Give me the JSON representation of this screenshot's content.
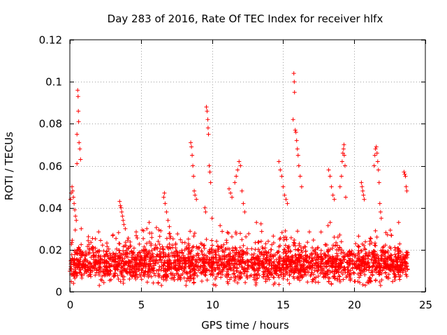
{
  "chart_data": {
    "type": "scatter",
    "title": "Day 283 of 2016, Rate Of TEC Index for receiver hlfx",
    "xlabel": "GPS time / hours",
    "ylabel": "ROTI / TECUs",
    "xlim": [
      0,
      25
    ],
    "ylim": [
      0,
      0.12
    ],
    "xticks": [
      0,
      5,
      10,
      15,
      20,
      25
    ],
    "xtick_labels": [
      "0",
      "5",
      "10",
      "15",
      "20",
      "25"
    ],
    "yticks": [
      0,
      0.02,
      0.04,
      0.06,
      0.08,
      0.1,
      0.12
    ],
    "ytick_labels": [
      "0",
      "0.02",
      "0.04",
      "0.06",
      "0.08",
      "0.1",
      "0.12"
    ],
    "grid": true,
    "marker": "+",
    "series": [
      {
        "name": "ROTI",
        "color": "#ff0000",
        "base_band": {
          "x_range": [
            0,
            23.8
          ],
          "y_range": [
            0.003,
            0.025
          ],
          "typical": 0.013
        },
        "points": [
          [
            0.05,
            0.044
          ],
          [
            0.1,
            0.047
          ],
          [
            0.15,
            0.05
          ],
          [
            0.2,
            0.048
          ],
          [
            0.25,
            0.045
          ],
          [
            0.3,
            0.042
          ],
          [
            0.35,
            0.039
          ],
          [
            0.4,
            0.036
          ],
          [
            0.45,
            0.034
          ],
          [
            0.5,
            0.075
          ],
          [
            0.5,
            0.061
          ],
          [
            0.55,
            0.096
          ],
          [
            0.58,
            0.093
          ],
          [
            0.6,
            0.086
          ],
          [
            0.62,
            0.081
          ],
          [
            0.65,
            0.071
          ],
          [
            0.7,
            0.068
          ],
          [
            0.75,
            0.063
          ],
          [
            0.8,
            0.03
          ],
          [
            3.5,
            0.043
          ],
          [
            3.55,
            0.041
          ],
          [
            3.6,
            0.04
          ],
          [
            3.65,
            0.038
          ],
          [
            3.7,
            0.036
          ],
          [
            3.75,
            0.034
          ],
          [
            3.8,
            0.032
          ],
          [
            3.9,
            0.03
          ],
          [
            6.6,
            0.045
          ],
          [
            6.65,
            0.047
          ],
          [
            6.7,
            0.042
          ],
          [
            6.8,
            0.038
          ],
          [
            6.9,
            0.034
          ],
          [
            7.0,
            0.031
          ],
          [
            8.5,
            0.071
          ],
          [
            8.55,
            0.069
          ],
          [
            8.6,
            0.065
          ],
          [
            8.65,
            0.06
          ],
          [
            8.7,
            0.055
          ],
          [
            8.75,
            0.048
          ],
          [
            8.8,
            0.046
          ],
          [
            8.9,
            0.044
          ],
          [
            9.6,
            0.088
          ],
          [
            9.65,
            0.086
          ],
          [
            9.7,
            0.082
          ],
          [
            9.72,
            0.078
          ],
          [
            9.75,
            0.075
          ],
          [
            9.8,
            0.06
          ],
          [
            9.85,
            0.057
          ],
          [
            9.9,
            0.052
          ],
          [
            9.5,
            0.04
          ],
          [
            9.55,
            0.038
          ],
          [
            10.0,
            0.035
          ],
          [
            11.2,
            0.049
          ],
          [
            11.3,
            0.047
          ],
          [
            11.4,
            0.045
          ],
          [
            11.6,
            0.052
          ],
          [
            11.7,
            0.055
          ],
          [
            11.8,
            0.058
          ],
          [
            11.9,
            0.062
          ],
          [
            12.0,
            0.06
          ],
          [
            12.1,
            0.048
          ],
          [
            12.2,
            0.042
          ],
          [
            12.3,
            0.038
          ],
          [
            14.7,
            0.062
          ],
          [
            14.8,
            0.058
          ],
          [
            14.9,
            0.055
          ],
          [
            15.0,
            0.05
          ],
          [
            15.1,
            0.046
          ],
          [
            15.2,
            0.044
          ],
          [
            15.3,
            0.042
          ],
          [
            15.7,
            0.082
          ],
          [
            15.75,
            0.104
          ],
          [
            15.78,
            0.1
          ],
          [
            15.8,
            0.095
          ],
          [
            15.85,
            0.077
          ],
          [
            15.9,
            0.076
          ],
          [
            15.95,
            0.072
          ],
          [
            16.0,
            0.068
          ],
          [
            16.05,
            0.065
          ],
          [
            16.1,
            0.06
          ],
          [
            16.2,
            0.055
          ],
          [
            16.3,
            0.05
          ],
          [
            18.2,
            0.058
          ],
          [
            18.3,
            0.055
          ],
          [
            18.4,
            0.05
          ],
          [
            18.5,
            0.046
          ],
          [
            18.6,
            0.044
          ],
          [
            19.0,
            0.05
          ],
          [
            19.1,
            0.055
          ],
          [
            19.15,
            0.062
          ],
          [
            19.2,
            0.066
          ],
          [
            19.25,
            0.068
          ],
          [
            19.28,
            0.07
          ],
          [
            19.3,
            0.065
          ],
          [
            19.35,
            0.06
          ],
          [
            19.4,
            0.045
          ],
          [
            20.5,
            0.052
          ],
          [
            20.55,
            0.05
          ],
          [
            20.6,
            0.048
          ],
          [
            20.65,
            0.046
          ],
          [
            20.7,
            0.044
          ],
          [
            21.4,
            0.06
          ],
          [
            21.45,
            0.065
          ],
          [
            21.5,
            0.068
          ],
          [
            21.55,
            0.069
          ],
          [
            21.6,
            0.066
          ],
          [
            21.65,
            0.062
          ],
          [
            21.7,
            0.058
          ],
          [
            21.75,
            0.052
          ],
          [
            21.8,
            0.042
          ],
          [
            21.85,
            0.038
          ],
          [
            21.9,
            0.035
          ],
          [
            23.5,
            0.057
          ],
          [
            23.55,
            0.056
          ],
          [
            23.6,
            0.055
          ],
          [
            23.65,
            0.05
          ],
          [
            23.7,
            0.048
          ]
        ]
      }
    ]
  }
}
